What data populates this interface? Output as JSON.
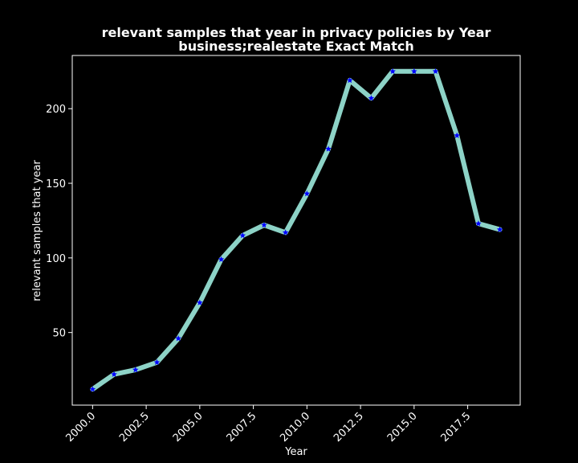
{
  "chart_data": {
    "type": "line",
    "title": "relevant samples that year in privacy policies by Year",
    "subtitle": "business;realestate Exact Match",
    "xlabel": "Year",
    "ylabel": "relevant samples that year",
    "xlim": [
      1999.05,
      2019.95
    ],
    "ylim": [
      1.35,
      235.65
    ],
    "xticks": [
      2000.0,
      2002.5,
      2005.0,
      2007.5,
      2010.0,
      2012.5,
      2015.0,
      2017.5
    ],
    "xtick_labels": [
      "2000.0",
      "2002.5",
      "2005.0",
      "2007.5",
      "2010.0",
      "2012.5",
      "2015.0",
      "2017.5"
    ],
    "yticks": [
      50,
      100,
      150,
      200
    ],
    "ytick_labels": [
      "50",
      "100",
      "150",
      "200"
    ],
    "grid": false,
    "background": "#000000",
    "line_color": "#8dd3c7",
    "marker_color": "#0000ff",
    "marker": "star",
    "x": [
      2000,
      2001,
      2002,
      2003,
      2004,
      2005,
      2006,
      2007,
      2008,
      2009,
      2010,
      2011,
      2012,
      2013,
      2014,
      2015,
      2016,
      2017,
      2018,
      2019
    ],
    "y": [
      12,
      22,
      25,
      30,
      46,
      70,
      99,
      115,
      122,
      117,
      143,
      173,
      219,
      207,
      225,
      225,
      225,
      182,
      123,
      119
    ]
  }
}
